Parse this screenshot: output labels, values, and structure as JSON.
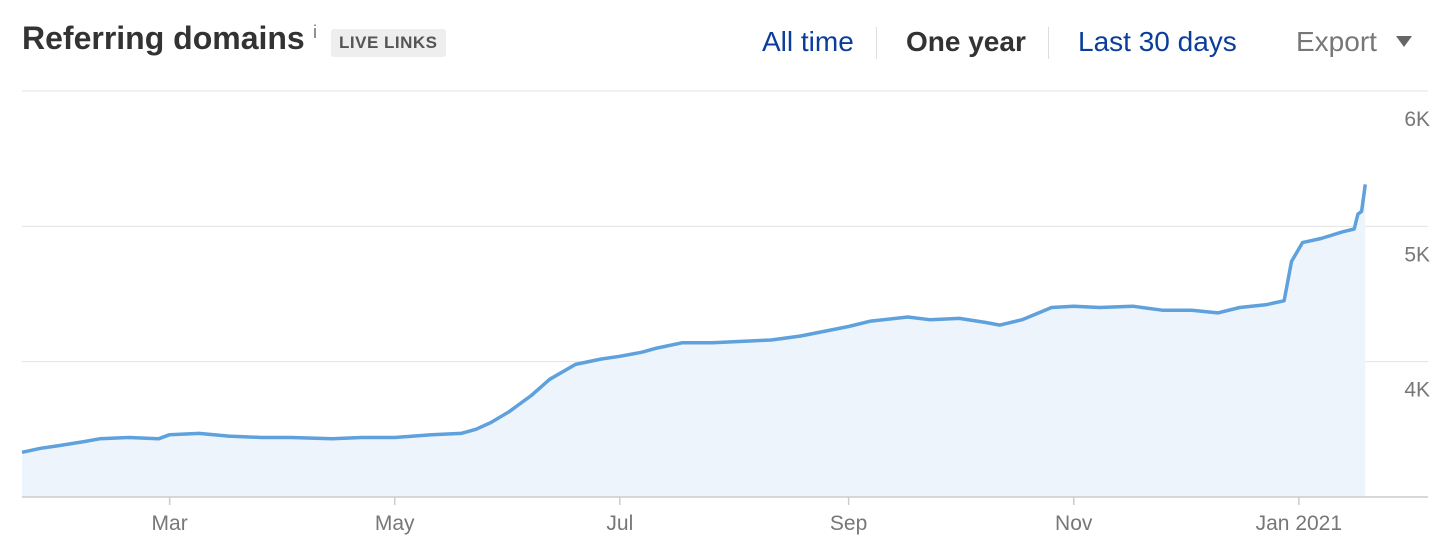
{
  "header": {
    "title": "Referring domains",
    "info": "i",
    "badge": "LIVE LINKS",
    "tabs": [
      "All time",
      "One year",
      "Last 30 days"
    ],
    "export": "Export"
  },
  "chart_data": {
    "type": "area",
    "color": "#5ea1dd",
    "fill": "#eef4fc",
    "grid": true,
    "x": [
      0,
      5,
      10,
      17,
      21,
      29,
      37,
      40,
      48,
      56,
      65,
      73,
      84,
      92,
      101,
      111,
      119,
      123,
      127,
      132,
      138,
      143,
      150,
      157,
      162,
      168,
      172,
      179,
      187,
      195,
      203,
      211,
      224,
      230,
      240,
      246,
      254,
      261,
      265,
      271,
      279,
      285,
      292,
      301,
      309,
      317,
      324,
      330,
      337,
      342,
      344,
      347,
      352,
      358,
      361,
      362,
      363,
      364
    ],
    "values": [
      3330,
      3360,
      3380,
      3410,
      3430,
      3440,
      3430,
      3460,
      3470,
      3450,
      3440,
      3440,
      3430,
      3440,
      3440,
      3460,
      3470,
      3500,
      3550,
      3630,
      3750,
      3870,
      3980,
      4020,
      4040,
      4070,
      4100,
      4140,
      4140,
      4150,
      4160,
      4190,
      4260,
      4300,
      4330,
      4310,
      4320,
      4290,
      4270,
      4310,
      4400,
      4410,
      4400,
      4410,
      4380,
      4380,
      4360,
      4400,
      4420,
      4450,
      4740,
      4880,
      4910,
      4960,
      4980,
      5090,
      5110,
      5310
    ],
    "xlim": [
      0,
      381
    ],
    "xticks": [
      {
        "value": 40,
        "label": "Mar"
      },
      {
        "value": 101,
        "label": "May"
      },
      {
        "value": 162,
        "label": "Jul"
      },
      {
        "value": 224,
        "label": "Sep"
      },
      {
        "value": 285,
        "label": "Nov"
      },
      {
        "value": 346,
        "label": "Jan 2021"
      }
    ],
    "ylim": [
      3000,
      6000
    ],
    "yticks": [
      {
        "value": 4000,
        "label": "4K"
      },
      {
        "value": 5000,
        "label": "5K"
      },
      {
        "value": 6000,
        "label": "6K"
      }
    ]
  }
}
